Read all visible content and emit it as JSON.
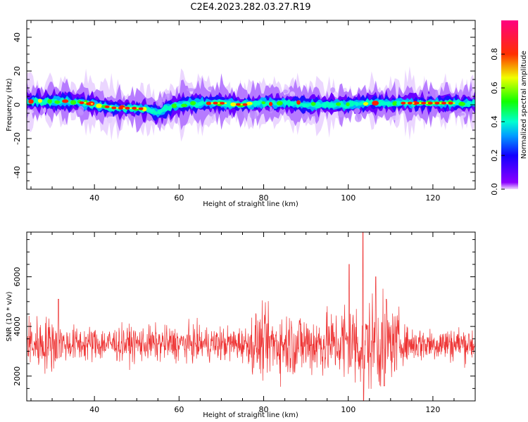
{
  "title": "C2E4.2023.282.03.27.R19",
  "chart_data": [
    {
      "type": "heatmap",
      "xlabel": "Height of straight line (km)",
      "ylabel": "Frequency (Hz)",
      "xlim": [
        24,
        130
      ],
      "ylim": [
        -50,
        50
      ],
      "xticks": [
        40,
        60,
        80,
        100,
        120
      ],
      "yticks": [
        -40,
        -20,
        0,
        20,
        40
      ],
      "colorbar": {
        "label": "Normalized spectral amplitude",
        "range": [
          0,
          1
        ],
        "ticks": [
          0.0,
          0.2,
          0.4,
          0.6,
          0.8
        ],
        "colormap": "rainbow (purple-blue-cyan-green-yellow-red-magenta)"
      },
      "ridge": {
        "x": [
          24,
          30,
          35,
          40,
          45,
          50,
          53,
          55,
          57,
          60,
          65,
          70,
          75,
          80,
          85,
          90,
          95,
          100,
          105,
          110,
          115,
          120,
          125,
          130
        ],
        "y": [
          2,
          2,
          2,
          0,
          -2,
          -2,
          -3,
          -5,
          -2,
          0,
          1,
          1,
          0,
          1,
          1,
          0,
          0,
          0,
          1,
          1,
          1,
          1,
          1,
          1
        ]
      },
      "grid": false
    },
    {
      "type": "line",
      "xlabel": "Height of straight line (km)",
      "ylabel": "SNR (10 * v/v)",
      "xlim": [
        24,
        130
      ],
      "ylim": [
        1000,
        7800
      ],
      "xticks": [
        40,
        60,
        80,
        100,
        120
      ],
      "yticks": [
        2000,
        4000,
        6000
      ],
      "series_color": "#ee3333",
      "baseline": 3300,
      "spikes": [
        {
          "x": 100.2,
          "y": 6500
        },
        {
          "x": 103.5,
          "y": 7800
        },
        {
          "x": 103.6,
          "y": 1000
        },
        {
          "x": 106.5,
          "y": 6000
        },
        {
          "x": 108.5,
          "y": 1600
        },
        {
          "x": 31.5,
          "y": 5100
        },
        {
          "x": 109,
          "y": 5100
        }
      ],
      "grid": false
    }
  ]
}
